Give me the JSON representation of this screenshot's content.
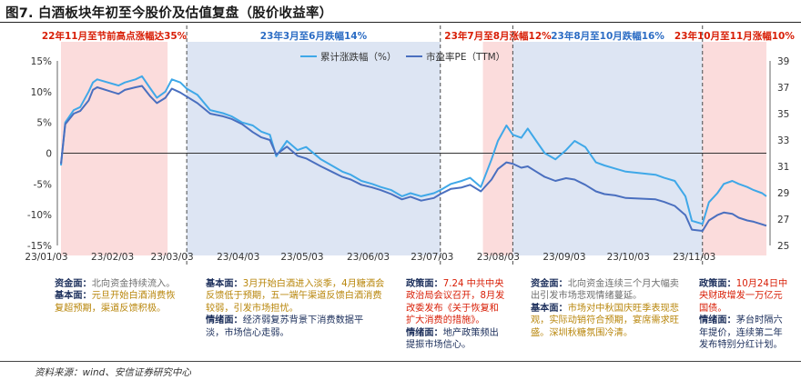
{
  "title": "图7. 白酒板块年初至今股价及估值复盘（股价收益率）",
  "source": "资料来源：wind、安信证券研究中心",
  "colors": {
    "pink_band": "#fbdcdc",
    "blue_band": "#dde5f3",
    "cum_line": "#3fa8e8",
    "pe_line": "#4a6fbf",
    "red_text": "#d81e06",
    "blue_text": "#2b6cc4"
  },
  "periods": [
    {
      "label": "22年11月至节前高点涨幅达35%",
      "start": "2023-01-03",
      "end": "2023-02-22",
      "band": "pink",
      "label_color": "red"
    },
    {
      "label": "23年3月至6月跌幅14%",
      "start": "2023-03-03",
      "end": "2023-06-30",
      "band": "blue",
      "label_color": "blue"
    },
    {
      "label": "23年7月至8月涨幅12%",
      "start": "2023-07-20",
      "end": "2023-08-03",
      "band": "pink",
      "label_color": "red"
    },
    {
      "label": "23年8月至10月跌幅16%",
      "start": "2023-08-03",
      "end": "2023-10-31",
      "band": "blue",
      "label_color": "blue"
    },
    {
      "label": "23年10月至11月涨幅10%",
      "start": "2023-10-31",
      "end": "2023-11-30",
      "band": "pink",
      "label_color": "red"
    }
  ],
  "annotations": [
    {
      "lines": [
        [
          {
            "t": "资金面：",
            "c": "lbl"
          },
          {
            "t": "北向资金持续流入。",
            "c": "txt-gray"
          }
        ],
        [
          {
            "t": "基本面：",
            "c": "lbl"
          },
          {
            "t": "元旦开始白酒消费恢",
            "c": "txt-gold"
          }
        ],
        [
          {
            "t": "复超预期，渠道反馈积极。",
            "c": "txt-gold"
          }
        ]
      ]
    },
    {
      "lines": [
        [
          {
            "t": "基本面：",
            "c": "lbl"
          },
          {
            "t": "3月开始白酒进入淡季，4月糖酒会",
            "c": "txt-gold"
          }
        ],
        [
          {
            "t": "反馈低于预期，五一端午渠道反馈白酒消费",
            "c": "txt-gold"
          }
        ],
        [
          {
            "t": "较弱，引发市场担忧。",
            "c": "txt-gold"
          }
        ],
        [
          {
            "t": "情绪面：",
            "c": "lbl"
          },
          {
            "t": "经济弱复苏背景下消费数据平",
            "c": "txt-blue"
          }
        ],
        [
          {
            "t": "淡，市场信心走弱。",
            "c": "txt-blue"
          }
        ]
      ]
    },
    {
      "lines": [
        [
          {
            "t": "政策面：",
            "c": "lbl"
          },
          {
            "t": "7.24 中共中央",
            "c": "txt-red"
          }
        ],
        [
          {
            "t": "政治局会议召开，8月发",
            "c": "txt-red"
          }
        ],
        [
          {
            "t": "改委发布《关于恢复和",
            "c": "txt-red"
          }
        ],
        [
          {
            "t": "扩大消费的措施》。",
            "c": "txt-red"
          }
        ],
        [
          {
            "t": "情绪面：",
            "c": "lbl"
          },
          {
            "t": "地产政策频出",
            "c": "txt-blue"
          }
        ],
        [
          {
            "t": "提振市场信心。",
            "c": "txt-blue"
          }
        ]
      ]
    },
    {
      "lines": [
        [
          {
            "t": "资金面：",
            "c": "lbl"
          },
          {
            "t": "北向资金连续三个月大幅卖",
            "c": "txt-gray"
          }
        ],
        [
          {
            "t": "出引发市场悲观情绪蔓延。",
            "c": "txt-gray"
          }
        ],
        [
          {
            "t": "基本面：",
            "c": "lbl"
          },
          {
            "t": "市场对中秋国庆旺季表现悲",
            "c": "txt-gold"
          }
        ],
        [
          {
            "t": "观，实际动销符合预期，宴席需求旺",
            "c": "txt-gold"
          }
        ],
        [
          {
            "t": "盛。深圳秋糖氛围冷清。",
            "c": "txt-gold"
          }
        ]
      ]
    },
    {
      "lines": [
        [
          {
            "t": "政策面：",
            "c": "lbl"
          },
          {
            "t": "10月24日中",
            "c": "txt-red"
          }
        ],
        [
          {
            "t": "央财政增发一万亿元",
            "c": "txt-red"
          }
        ],
        [
          {
            "t": "国债。",
            "c": "txt-red"
          }
        ],
        [
          {
            "t": "情绪面：",
            "c": "lbl"
          },
          {
            "t": "茅台时隔六",
            "c": "txt-blue"
          }
        ],
        [
          {
            "t": "年提价，连续第二年",
            "c": "txt-blue"
          }
        ],
        [
          {
            "t": "发布特别分红计划。",
            "c": "txt-blue"
          }
        ]
      ]
    }
  ],
  "chart_data": {
    "type": "line",
    "x_start": "2023-01-03",
    "x_end": "2023-11-30",
    "x_ticks": [
      "23/01/03",
      "23/02/03",
      "23/03/03",
      "23/04/03",
      "23/05/03",
      "23/06/03",
      "23/07/03",
      "23/08/03",
      "23/09/03",
      "23/10/03",
      "23/11/03"
    ],
    "x_tick_dates": [
      "2023-01-03",
      "2023-02-03",
      "2023-03-03",
      "2023-04-03",
      "2023-05-03",
      "2023-06-03",
      "2023-07-03",
      "2023-08-03",
      "2023-09-03",
      "2023-10-03",
      "2023-11-03"
    ],
    "y_left": {
      "min": -0.15,
      "max": 0.15,
      "ticks": [
        0.15,
        0.1,
        0.05,
        0,
        -0.05,
        -0.1,
        -0.15
      ],
      "tick_labels": [
        "15%",
        "10%",
        "5%",
        "0",
        "-5%",
        "-10%",
        "-15%"
      ]
    },
    "y_right": {
      "min": 25,
      "max": 39,
      "ticks": [
        39,
        37,
        35,
        33,
        31,
        29,
        27,
        25
      ]
    },
    "grid": false,
    "legend": "top-right",
    "series": [
      {
        "name": "累计涨跌幅（%）",
        "axis": "left",
        "color": "#3fa8e8",
        "points": [
          [
            "2023-01-03",
            -0.02
          ],
          [
            "2023-01-05",
            0.05
          ],
          [
            "2023-01-09",
            0.07
          ],
          [
            "2023-01-12",
            0.075
          ],
          [
            "2023-01-16",
            0.1
          ],
          [
            "2023-01-18",
            0.115
          ],
          [
            "2023-01-20",
            0.12
          ],
          [
            "2023-01-30",
            0.11
          ],
          [
            "2023-02-02",
            0.115
          ],
          [
            "2023-02-07",
            0.12
          ],
          [
            "2023-02-10",
            0.125
          ],
          [
            "2023-02-14",
            0.105
          ],
          [
            "2023-02-17",
            0.09
          ],
          [
            "2023-02-21",
            0.1
          ],
          [
            "2023-02-24",
            0.12
          ],
          [
            "2023-02-28",
            0.115
          ],
          [
            "2023-03-03",
            0.105
          ],
          [
            "2023-03-08",
            0.095
          ],
          [
            "2023-03-14",
            0.07
          ],
          [
            "2023-03-20",
            0.065
          ],
          [
            "2023-03-24",
            0.06
          ],
          [
            "2023-03-29",
            0.05
          ],
          [
            "2023-04-03",
            0.045
          ],
          [
            "2023-04-07",
            0.035
          ],
          [
            "2023-04-11",
            0.03
          ],
          [
            "2023-04-14",
            -0.005
          ],
          [
            "2023-04-19",
            0.02
          ],
          [
            "2023-04-24",
            0.005
          ],
          [
            "2023-04-28",
            0.01
          ],
          [
            "2023-05-05",
            -0.01
          ],
          [
            "2023-05-10",
            -0.02
          ],
          [
            "2023-05-15",
            -0.03
          ],
          [
            "2023-05-19",
            -0.035
          ],
          [
            "2023-05-24",
            -0.045
          ],
          [
            "2023-05-29",
            -0.05
          ],
          [
            "2023-06-02",
            -0.055
          ],
          [
            "2023-06-07",
            -0.06
          ],
          [
            "2023-06-12",
            -0.07
          ],
          [
            "2023-06-16",
            -0.065
          ],
          [
            "2023-06-21",
            -0.07
          ],
          [
            "2023-06-27",
            -0.065
          ],
          [
            "2023-06-30",
            -0.06
          ],
          [
            "2023-07-05",
            -0.05
          ],
          [
            "2023-07-10",
            -0.045
          ],
          [
            "2023-07-14",
            -0.04
          ],
          [
            "2023-07-19",
            -0.055
          ],
          [
            "2023-07-24",
            -0.01
          ],
          [
            "2023-07-27",
            0.02
          ],
          [
            "2023-07-31",
            0.045
          ],
          [
            "2023-08-03",
            0.03
          ],
          [
            "2023-08-07",
            0.025
          ],
          [
            "2023-08-10",
            0.04
          ],
          [
            "2023-08-14",
            0.02
          ],
          [
            "2023-08-18",
            0.0
          ],
          [
            "2023-08-23",
            -0.01
          ],
          [
            "2023-08-28",
            0.005
          ],
          [
            "2023-09-01",
            0.02
          ],
          [
            "2023-09-06",
            0.01
          ],
          [
            "2023-09-11",
            -0.015
          ],
          [
            "2023-09-15",
            -0.02
          ],
          [
            "2023-09-20",
            -0.025
          ],
          [
            "2023-09-25",
            -0.03
          ],
          [
            "2023-10-09",
            -0.035
          ],
          [
            "2023-10-13",
            -0.04
          ],
          [
            "2023-10-18",
            -0.045
          ],
          [
            "2023-10-23",
            -0.07
          ],
          [
            "2023-10-26",
            -0.11
          ],
          [
            "2023-10-31",
            -0.115
          ],
          [
            "2023-11-03",
            -0.08
          ],
          [
            "2023-11-07",
            -0.065
          ],
          [
            "2023-11-10",
            -0.05
          ],
          [
            "2023-11-14",
            -0.045
          ],
          [
            "2023-11-17",
            -0.05
          ],
          [
            "2023-11-21",
            -0.055
          ],
          [
            "2023-11-24",
            -0.06
          ],
          [
            "2023-11-28",
            -0.065
          ],
          [
            "2023-11-30",
            -0.07
          ]
        ]
      },
      {
        "name": "市盈率PE（TTM）",
        "axis": "right",
        "color": "#4a6fbf",
        "points": [
          [
            "2023-01-03",
            31.2
          ],
          [
            "2023-01-05",
            34.2
          ],
          [
            "2023-01-09",
            35.0
          ],
          [
            "2023-01-12",
            35.2
          ],
          [
            "2023-01-16",
            36.0
          ],
          [
            "2023-01-18",
            36.8
          ],
          [
            "2023-01-20",
            37.0
          ],
          [
            "2023-01-30",
            36.5
          ],
          [
            "2023-02-02",
            36.8
          ],
          [
            "2023-02-07",
            37.0
          ],
          [
            "2023-02-10",
            37.1
          ],
          [
            "2023-02-14",
            36.3
          ],
          [
            "2023-02-17",
            35.8
          ],
          [
            "2023-02-21",
            36.2
          ],
          [
            "2023-02-24",
            36.9
          ],
          [
            "2023-02-28",
            36.6
          ],
          [
            "2023-03-03",
            36.3
          ],
          [
            "2023-03-08",
            35.8
          ],
          [
            "2023-03-14",
            35.0
          ],
          [
            "2023-03-20",
            34.8
          ],
          [
            "2023-03-24",
            34.6
          ],
          [
            "2023-03-29",
            34.2
          ],
          [
            "2023-04-03",
            33.6
          ],
          [
            "2023-04-07",
            33.2
          ],
          [
            "2023-04-11",
            33.0
          ],
          [
            "2023-04-14",
            31.9
          ],
          [
            "2023-04-19",
            32.5
          ],
          [
            "2023-04-24",
            31.8
          ],
          [
            "2023-04-28",
            31.6
          ],
          [
            "2023-05-05",
            31.0
          ],
          [
            "2023-05-10",
            30.6
          ],
          [
            "2023-05-15",
            30.2
          ],
          [
            "2023-05-19",
            30.0
          ],
          [
            "2023-05-24",
            29.6
          ],
          [
            "2023-05-29",
            29.4
          ],
          [
            "2023-06-02",
            29.2
          ],
          [
            "2023-06-07",
            28.9
          ],
          [
            "2023-06-12",
            28.5
          ],
          [
            "2023-06-16",
            28.7
          ],
          [
            "2023-06-21",
            28.4
          ],
          [
            "2023-06-27",
            28.6
          ],
          [
            "2023-06-30",
            28.9
          ],
          [
            "2023-07-05",
            29.3
          ],
          [
            "2023-07-10",
            29.4
          ],
          [
            "2023-07-14",
            29.6
          ],
          [
            "2023-07-19",
            29.1
          ],
          [
            "2023-07-24",
            30.0
          ],
          [
            "2023-07-27",
            30.8
          ],
          [
            "2023-07-31",
            31.3
          ],
          [
            "2023-08-03",
            31.2
          ],
          [
            "2023-08-07",
            30.9
          ],
          [
            "2023-08-10",
            31.0
          ],
          [
            "2023-08-14",
            30.6
          ],
          [
            "2023-08-18",
            30.2
          ],
          [
            "2023-08-23",
            29.9
          ],
          [
            "2023-08-28",
            30.1
          ],
          [
            "2023-09-01",
            30.0
          ],
          [
            "2023-09-06",
            29.6
          ],
          [
            "2023-09-11",
            29.1
          ],
          [
            "2023-09-15",
            28.9
          ],
          [
            "2023-09-20",
            28.8
          ],
          [
            "2023-09-25",
            28.6
          ],
          [
            "2023-10-09",
            28.5
          ],
          [
            "2023-10-13",
            28.3
          ],
          [
            "2023-10-18",
            28.0
          ],
          [
            "2023-10-23",
            27.3
          ],
          [
            "2023-10-26",
            26.2
          ],
          [
            "2023-10-31",
            26.1
          ],
          [
            "2023-11-03",
            26.9
          ],
          [
            "2023-11-07",
            27.3
          ],
          [
            "2023-11-10",
            27.5
          ],
          [
            "2023-11-14",
            27.4
          ],
          [
            "2023-11-17",
            27.1
          ],
          [
            "2023-11-21",
            26.9
          ],
          [
            "2023-11-24",
            26.8
          ],
          [
            "2023-11-28",
            26.6
          ],
          [
            "2023-11-30",
            26.5
          ]
        ]
      }
    ]
  }
}
